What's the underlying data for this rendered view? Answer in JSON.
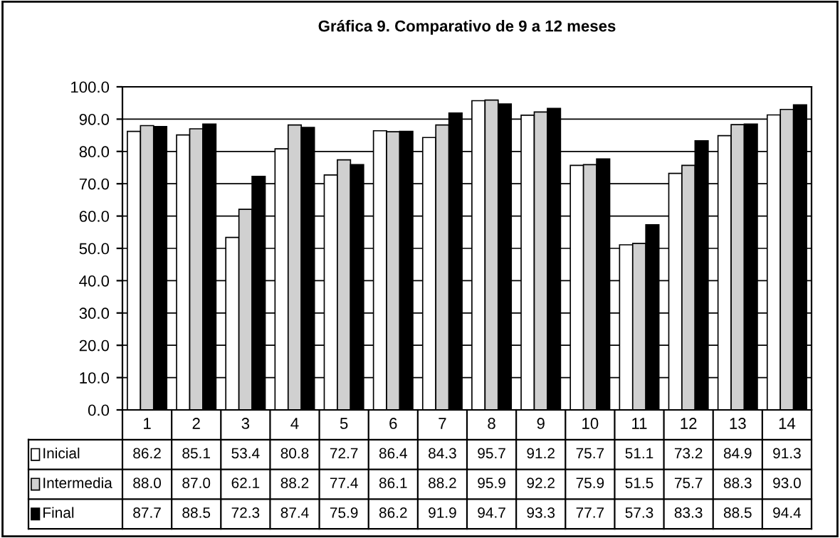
{
  "chart_data": {
    "type": "bar",
    "title": "Gráfica 9. Comparativo de 9 a 12 meses",
    "categories": [
      "1",
      "2",
      "3",
      "4",
      "5",
      "6",
      "7",
      "8",
      "9",
      "10",
      "11",
      "12",
      "13",
      "14"
    ],
    "series": [
      {
        "name": "Inicial",
        "color": "#ffffff",
        "values": [
          86.2,
          85.1,
          53.4,
          80.8,
          72.7,
          86.4,
          84.3,
          95.7,
          91.2,
          75.7,
          51.1,
          73.2,
          84.9,
          91.3
        ],
        "value_labels": [
          "86.2",
          "85.1",
          "53.4",
          "80.8",
          "72.7",
          "86.4",
          "84.3",
          "95.7",
          "91.2",
          "75.7",
          "51.1",
          "73.2",
          "84.9",
          "91.3"
        ]
      },
      {
        "name": "Intermedia",
        "color": "#d0d0d0",
        "values": [
          88.0,
          87.0,
          62.1,
          88.2,
          77.4,
          86.1,
          88.2,
          95.9,
          92.2,
          75.9,
          51.5,
          75.7,
          88.3,
          93.0
        ],
        "value_labels": [
          "88.0",
          "87.0",
          "62.1",
          "88.2",
          "77.4",
          "86.1",
          "88.2",
          "95.9",
          "92.2",
          "75.9",
          "51.5",
          "75.7",
          "88.3",
          "93.0"
        ]
      },
      {
        "name": "Final",
        "color": "#000000",
        "values": [
          87.7,
          88.5,
          72.3,
          87.4,
          75.9,
          86.2,
          91.9,
          94.7,
          93.3,
          77.7,
          57.3,
          83.3,
          88.5,
          94.4
        ],
        "value_labels": [
          "87.7",
          "88.5",
          "72.3",
          "87.4",
          "75.9",
          "86.2",
          "91.9",
          "94.7",
          "93.3",
          "77.7",
          "57.3",
          "83.3",
          "88.5",
          "94.4"
        ]
      }
    ],
    "ylim": [
      0,
      100
    ],
    "yticks": [
      {
        "value": 0,
        "label": "0.0"
      },
      {
        "value": 10,
        "label": "10.0"
      },
      {
        "value": 20,
        "label": "20.0"
      },
      {
        "value": 30,
        "label": "30.0"
      },
      {
        "value": 40,
        "label": "40.0"
      },
      {
        "value": 50,
        "label": "50.0"
      },
      {
        "value": 60,
        "label": "60.0"
      },
      {
        "value": 70,
        "label": "70.0"
      },
      {
        "value": 80,
        "label": "80.0"
      },
      {
        "value": 90,
        "label": "90.0"
      },
      {
        "value": 100,
        "label": "100.0"
      }
    ],
    "grid": "y",
    "legend": "bottom"
  }
}
